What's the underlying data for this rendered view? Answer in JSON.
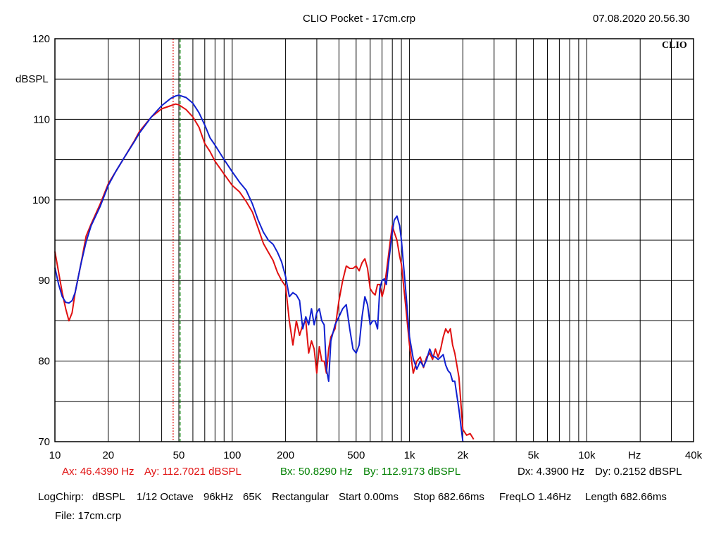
{
  "header": {
    "title": "CLIO Pocket - 17cm.crp",
    "timestamp": "07.08.2020 20.56.30"
  },
  "colors": {
    "series_a": "#e01010",
    "series_b": "#1020d0",
    "cursor_a": "#e01010",
    "cursor_b": "#008000",
    "grid": "#000000"
  },
  "chart_data": {
    "type": "line",
    "brand": "CLIO",
    "ylabel": "dBSPL",
    "xunit": "Hz",
    "xscale": "log",
    "xlim": [
      10,
      40000
    ],
    "ylim": [
      70,
      120
    ],
    "grid": true,
    "x_tick_labels": [
      {
        "value": 10,
        "label": "10"
      },
      {
        "value": 20,
        "label": "20"
      },
      {
        "value": 50,
        "label": "50"
      },
      {
        "value": 100,
        "label": "100"
      },
      {
        "value": 200,
        "label": "200"
      },
      {
        "value": 500,
        "label": "500"
      },
      {
        "value": 1000,
        "label": "1k"
      },
      {
        "value": 2000,
        "label": "2k"
      },
      {
        "value": 5000,
        "label": "5k"
      },
      {
        "value": 10000,
        "label": "10k"
      },
      {
        "value": 40000,
        "label": "40k"
      }
    ],
    "y_tick_labels": [
      {
        "value": 120,
        "label": "120"
      },
      {
        "value": 110,
        "label": "110"
      },
      {
        "value": 100,
        "label": "100"
      },
      {
        "value": 90,
        "label": "90"
      },
      {
        "value": 80,
        "label": "80"
      },
      {
        "value": 70,
        "label": "70"
      }
    ],
    "series": [
      {
        "color": "#e01010",
        "x": [
          10,
          10.5,
          11,
          11.5,
          12,
          12.5,
          13,
          14,
          15,
          16,
          18,
          20,
          22,
          25,
          28,
          30,
          35,
          40,
          45,
          48,
          50,
          55,
          60,
          65,
          70,
          75,
          80,
          90,
          100,
          110,
          120,
          130,
          140,
          150,
          160,
          170,
          180,
          190,
          200,
          210,
          220,
          230,
          240,
          250,
          260,
          270,
          280,
          290,
          300,
          310,
          320,
          330,
          340,
          350,
          360,
          380,
          400,
          420,
          440,
          460,
          480,
          500,
          520,
          540,
          560,
          580,
          600,
          620,
          640,
          660,
          680,
          700,
          720,
          740,
          760,
          780,
          800,
          820,
          850,
          880,
          900,
          950,
          1000,
          1050,
          1100,
          1150,
          1200,
          1250,
          1300,
          1350,
          1400,
          1450,
          1500,
          1550,
          1600,
          1650,
          1700,
          1750,
          1800,
          1900,
          2000,
          2100,
          2200,
          2300
        ],
        "y": [
          93.6,
          91,
          88.5,
          86.5,
          85,
          86,
          88.5,
          92,
          95.5,
          97,
          99.5,
          102,
          103.5,
          105.5,
          107.3,
          108.5,
          110.3,
          111.3,
          111.7,
          111.9,
          111.8,
          111.2,
          110.3,
          109,
          107,
          106,
          104.8,
          103.2,
          101.8,
          101,
          99.8,
          98.5,
          96.5,
          94.6,
          93.5,
          92.5,
          91,
          90,
          89.3,
          85,
          82,
          85,
          83.2,
          84.5,
          85,
          81,
          82.5,
          81.5,
          78.5,
          81.8,
          80,
          80,
          78.5,
          81.5,
          83,
          84,
          87.5,
          90,
          91.8,
          91.5,
          91.5,
          91.8,
          91.2,
          92.2,
          92.7,
          91.5,
          89,
          88.5,
          88.2,
          89.5,
          89.5,
          88,
          89,
          91,
          93,
          95,
          96.8,
          96,
          95,
          93,
          92,
          87,
          82,
          78.5,
          80,
          80.5,
          79.2,
          80.5,
          81,
          80.2,
          81.5,
          80.5,
          81.5,
          83,
          84,
          83.5,
          84,
          82,
          81,
          78,
          71.5,
          70.8,
          71,
          70.3
        ]
      },
      {
        "color": "#1020d0",
        "x": [
          10,
          10.5,
          11,
          11.5,
          12,
          12.5,
          13,
          14,
          15,
          16,
          18,
          20,
          22,
          25,
          28,
          30,
          35,
          40,
          45,
          48,
          50,
          55,
          60,
          65,
          70,
          75,
          80,
          90,
          100,
          110,
          120,
          130,
          140,
          150,
          160,
          170,
          180,
          190,
          200,
          210,
          220,
          230,
          240,
          250,
          260,
          270,
          280,
          290,
          300,
          310,
          320,
          330,
          340,
          350,
          360,
          380,
          400,
          420,
          440,
          460,
          480,
          500,
          520,
          540,
          560,
          580,
          600,
          620,
          640,
          660,
          680,
          700,
          720,
          740,
          760,
          780,
          800,
          820,
          850,
          880,
          900,
          950,
          1000,
          1050,
          1100,
          1150,
          1200,
          1250,
          1300,
          1350,
          1400,
          1450,
          1500,
          1550,
          1600,
          1650,
          1700,
          1750,
          1800,
          1900,
          2000
        ],
        "y": [
          91.6,
          89.5,
          88,
          87.3,
          87.2,
          87.5,
          88.5,
          92,
          94.8,
          96.8,
          99.2,
          101.8,
          103.5,
          105.5,
          107.2,
          108.3,
          110.3,
          111.7,
          112.6,
          112.9,
          113,
          112.7,
          112,
          110.8,
          109.3,
          107.7,
          106.8,
          105,
          103.5,
          102.2,
          101.2,
          99.5,
          97.5,
          96,
          95,
          94.5,
          93.5,
          92.3,
          90.5,
          88,
          88.5,
          88.2,
          87.5,
          84,
          85.5,
          84.5,
          86.5,
          84.5,
          86,
          86.5,
          85,
          84.5,
          79,
          77.5,
          82.5,
          84.5,
          85.5,
          86.5,
          87,
          84,
          81.5,
          81,
          82,
          85.5,
          88,
          87,
          84.5,
          85,
          85,
          84,
          89,
          90,
          90.2,
          89.5,
          92,
          94,
          96,
          97.5,
          98,
          96.8,
          95,
          89,
          83,
          80.3,
          79,
          80,
          79.3,
          80.2,
          81.5,
          80.6,
          80.5,
          80.2,
          80.5,
          80.8,
          79.5,
          78.8,
          78.5,
          77.5,
          77.5,
          74,
          70
        ]
      }
    ],
    "cursors": [
      {
        "x": 46.439,
        "color": "#e01010",
        "style": "dotted"
      },
      {
        "x": 50.829,
        "color": "#008000",
        "style": "dashed"
      }
    ]
  },
  "readouts": {
    "ax": "Ax: 46.4390 Hz",
    "ay": "Ay: 112.7021 dBSPL",
    "bx": "Bx: 50.8290 Hz",
    "by": "By: 112.9173 dBSPL",
    "dx": "Dx: 4.3900 Hz",
    "dy": "Dy: 0.2152 dBSPL"
  },
  "settings": {
    "method": "LogChirp:",
    "unit": "dBSPL",
    "smoothing": "1/12 Octave",
    "sample_rate": "96kHz",
    "size": "65K",
    "window": "Rectangular",
    "start": "Start 0.00ms",
    "stop": "Stop 682.66ms",
    "freqlo": "FreqLO 1.46Hz",
    "length": "Length 682.66ms"
  },
  "file": "File: 17cm.crp"
}
